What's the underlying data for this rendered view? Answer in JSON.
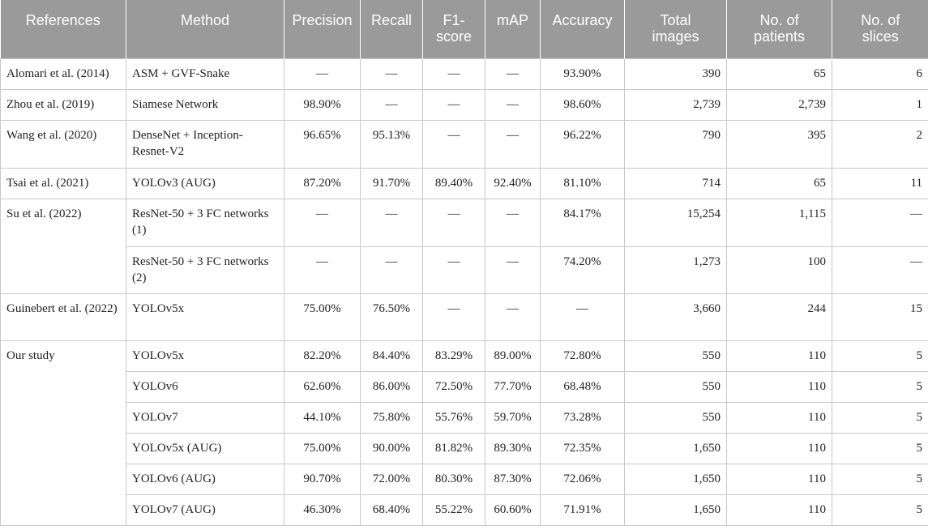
{
  "headers": [
    "References",
    "Method",
    "Precision",
    "Recall",
    "F1-\nscore",
    "mAP",
    "Accuracy",
    "Total\nimages",
    "No. of\npatients",
    "No. of\nslices"
  ],
  "rows": [
    {
      "ref": "Alomari et al. (2014)",
      "method": "ASM + GVF-Snake",
      "precision": "—",
      "recall": "—",
      "f1": "—",
      "map": "—",
      "accuracy": "93.90%",
      "total": "390",
      "patients": "65",
      "slices": "6"
    },
    {
      "ref": "Zhou et al. (2019)",
      "method": "Siamese Network",
      "precision": "98.90%",
      "recall": "—",
      "f1": "—",
      "map": "—",
      "accuracy": "98.60%",
      "total": "2,739",
      "patients": "2,739",
      "slices": "1"
    },
    {
      "ref": "Wang et al. (2020)",
      "method": "DenseNet + Inception-Resnet-V2",
      "precision": "96.65%",
      "recall": "95.13%",
      "f1": "—",
      "map": "—",
      "accuracy": "96.22%",
      "total": "790",
      "patients": "395",
      "slices": "2"
    },
    {
      "ref": "Tsai et al. (2021)",
      "method": "YOLOv3 (AUG)",
      "precision": "87.20%",
      "recall": "91.70%",
      "f1": "89.40%",
      "map": "92.40%",
      "accuracy": "81.10%",
      "total": "714",
      "patients": "65",
      "slices": "11"
    },
    {
      "ref": "Su et al. (2022)",
      "method": "ResNet-50 + 3 FC networks (1)",
      "precision": "—",
      "recall": "—",
      "f1": "—",
      "map": "—",
      "accuracy": "84.17%",
      "total": "15,254",
      "patients": "1,115",
      "slices": "—"
    },
    {
      "method": "ResNet-50 + 3 FC networks (2)",
      "precision": "—",
      "recall": "—",
      "f1": "—",
      "map": "—",
      "accuracy": "74.20%",
      "total": "1,273",
      "patients": "100",
      "slices": "—"
    },
    {
      "ref": "Guinebert et al. (2022)",
      "method": "YOLOv5x",
      "precision": "75.00%",
      "recall": "76.50%",
      "f1": "—",
      "map": "—",
      "accuracy": "—",
      "total": "3,660",
      "patients": "244",
      "slices": "15"
    },
    {
      "ref": "Our study",
      "method": "YOLOv5x",
      "precision": "82.20%",
      "recall": "84.40%",
      "f1": "83.29%",
      "map": "89.00%",
      "accuracy": "72.80%",
      "total": "550",
      "patients": "110",
      "slices": "5"
    },
    {
      "method": "YOLOv6",
      "precision": "62.60%",
      "recall": "86.00%",
      "f1": "72.50%",
      "map": "77.70%",
      "accuracy": "68.48%",
      "total": "550",
      "patients": "110",
      "slices": "5"
    },
    {
      "method": "YOLOv7",
      "precision": "44.10%",
      "recall": "75.80%",
      "f1": "55.76%",
      "map": "59.70%",
      "accuracy": "73.28%",
      "total": "550",
      "patients": "110",
      "slices": "5"
    },
    {
      "method": "YOLOv5x (AUG)",
      "precision": "75.00%",
      "recall": "90.00%",
      "f1": "81.82%",
      "map": "89.30%",
      "accuracy": "72.35%",
      "total": "1,650",
      "patients": "110",
      "slices": "5"
    },
    {
      "method": "YOLOv6 (AUG)",
      "precision": "90.70%",
      "recall": "72.00%",
      "f1": "80.30%",
      "map": "87.30%",
      "accuracy": "72.06%",
      "total": "1,650",
      "patients": "110",
      "slices": "5"
    },
    {
      "method": "YOLOv7 (AUG)",
      "precision": "46.30%",
      "recall": "68.40%",
      "f1": "55.22%",
      "map": "60.60%",
      "accuracy": "71.91%",
      "total": "1,650",
      "patients": "110",
      "slices": "5"
    }
  ]
}
